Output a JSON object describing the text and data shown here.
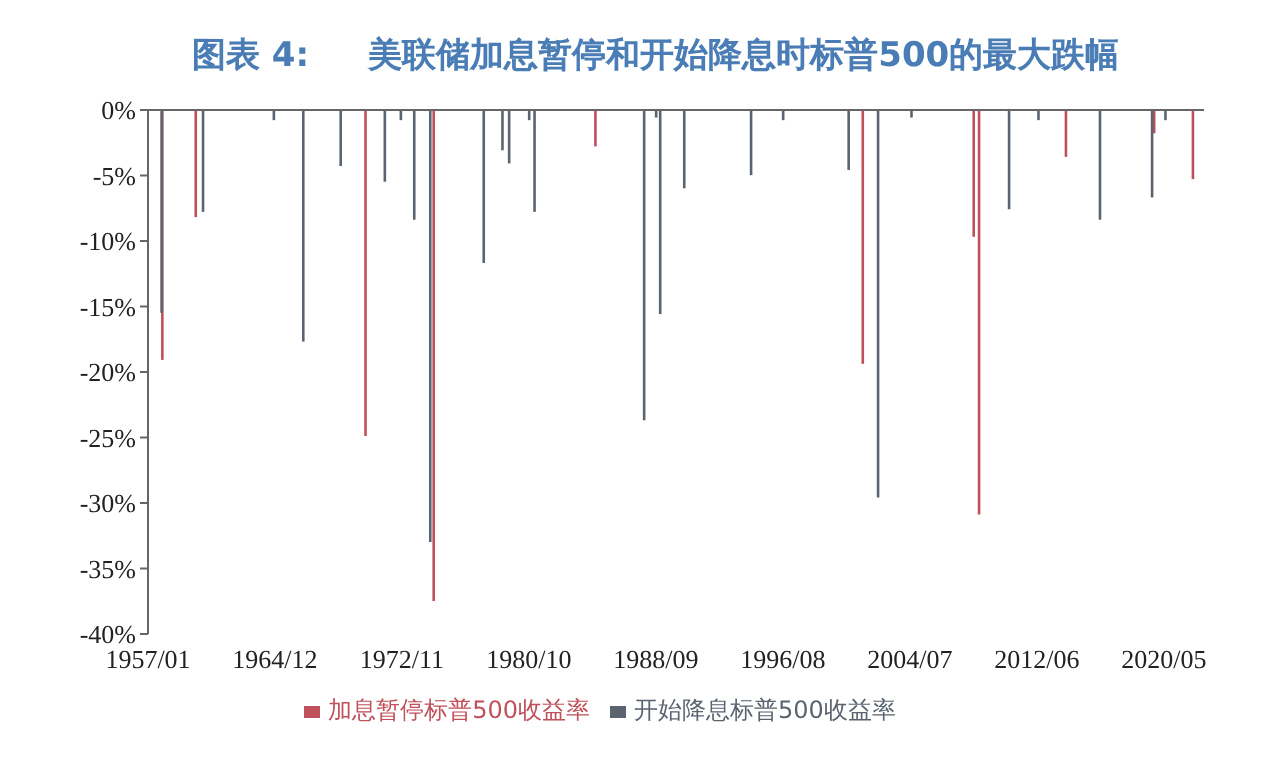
{
  "chart_data": {
    "type": "bar",
    "title": "图表 4:     美联储加息暂停和开始降息时标普500的最大跌幅",
    "xlim": [
      "1957-01",
      "2022-11"
    ],
    "xticks": [
      {
        "value": "1957-01",
        "label": "1957/01"
      },
      {
        "value": "1964-12",
        "label": "1964/12"
      },
      {
        "value": "1972-11",
        "label": "1972/11"
      },
      {
        "value": "1980-10",
        "label": "1980/10"
      },
      {
        "value": "1988-09",
        "label": "1988/09"
      },
      {
        "value": "1996-08",
        "label": "1996/08"
      },
      {
        "value": "2004-07",
        "label": "2004/07"
      },
      {
        "value": "2012-06",
        "label": "2012/06"
      },
      {
        "value": "2020-05",
        "label": "2020/05"
      }
    ],
    "ylim": [
      -40,
      0
    ],
    "yticks": [
      {
        "value": -40,
        "label": "-40%"
      },
      {
        "value": -35,
        "label": "-35%"
      },
      {
        "value": -30,
        "label": "-30%"
      },
      {
        "value": -25,
        "label": "-25%"
      },
      {
        "value": -20,
        "label": "-20%"
      },
      {
        "value": -15,
        "label": "-15%"
      },
      {
        "value": -10,
        "label": "-10%"
      },
      {
        "value": -5,
        "label": "-5%"
      },
      {
        "value": 0,
        "label": "0%"
      }
    ],
    "legend": "bottom",
    "grid": false,
    "series": [
      {
        "name": "加息暂停标普500收益率",
        "color": "#c0505a",
        "x": [
          "1957-12",
          "1960-01",
          "1970-08",
          "1974-11",
          "1984-12",
          "2001-08",
          "2008-07",
          "2008-11",
          "2014-04",
          "2019-10",
          "2022-03"
        ],
        "values": [
          -19.0,
          -8.1,
          -24.8,
          -37.4,
          -2.7,
          -19.3,
          -9.6,
          -30.8,
          -3.5,
          -1.7,
          -5.2
        ]
      },
      {
        "name": "开始降息标普500收益率",
        "color": "#5a6470",
        "x": [
          "1957-11",
          "1960-06",
          "1964-11",
          "1966-09",
          "1969-01",
          "1971-10",
          "1972-10",
          "1973-08",
          "1974-08",
          "1977-12",
          "1979-02",
          "1979-07",
          "1980-10",
          "1981-02",
          "1987-12",
          "1988-09",
          "1988-12",
          "1990-06",
          "1994-08",
          "1996-08",
          "2000-09",
          "2002-07",
          "2004-08",
          "2010-09",
          "2012-07",
          "2016-05",
          "2019-08",
          "2020-06"
        ],
        "values": [
          -15.4,
          -7.7,
          -0.7,
          -17.6,
          -4.2,
          -5.4,
          -0.7,
          -8.3,
          -32.9,
          -11.6,
          -3.0,
          -4.0,
          -0.7,
          -7.7,
          -23.6,
          -0.5,
          -15.5,
          -5.9,
          -4.9,
          -0.7,
          -4.5,
          -29.5,
          -0.5,
          -7.5,
          -0.7,
          -8.3,
          -6.6,
          -0.7
        ]
      }
    ]
  }
}
